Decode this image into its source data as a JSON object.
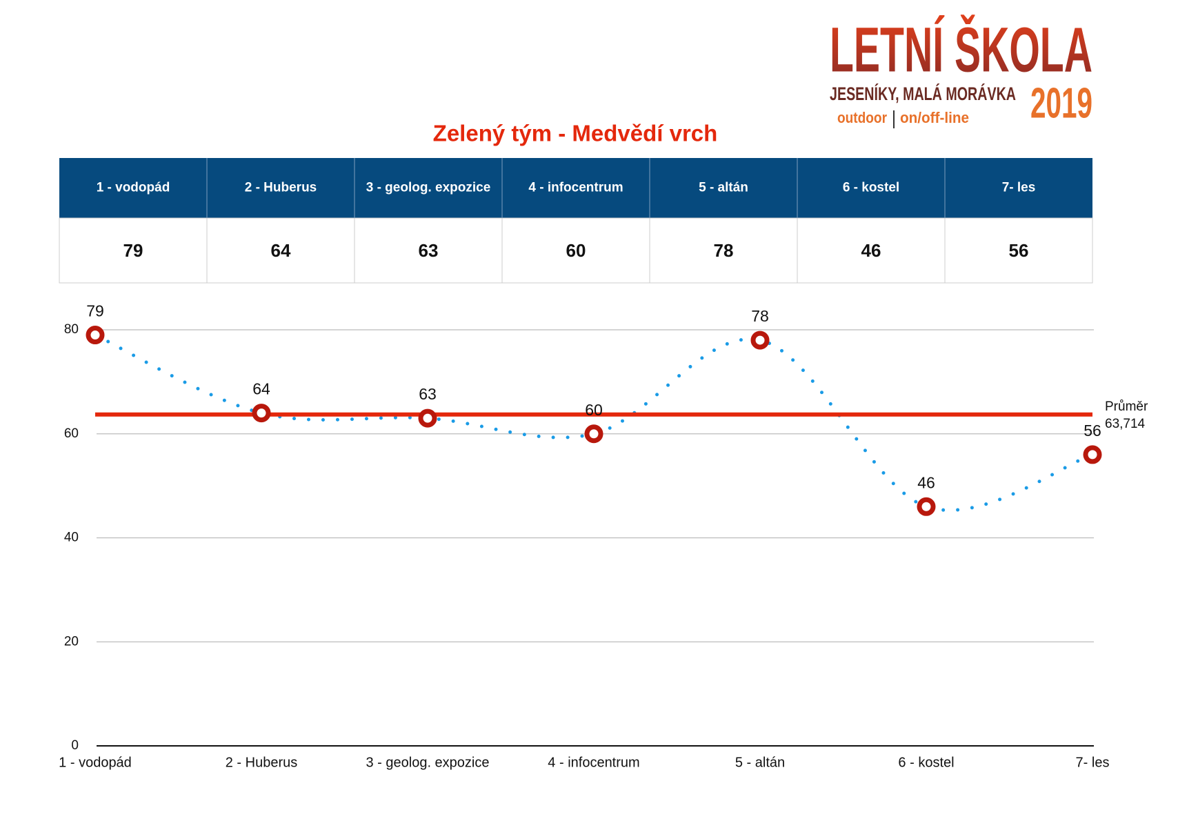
{
  "chart_data": {
    "type": "line",
    "title": "Zelený tým - Medvědí vrch",
    "categories": [
      "1 - vodopád",
      "2 - Huberus",
      "3 - geolog. expozice",
      "4 - infocentrum",
      "5 - altán",
      "6 - kostel",
      "7- les"
    ],
    "values": [
      79,
      64,
      63,
      60,
      78,
      46,
      56
    ],
    "color": "#1a9be6",
    "marker_color": "#b8180c",
    "ylim": [
      0,
      80
    ],
    "yticks": [
      0,
      20,
      40,
      60,
      80
    ],
    "grid": true,
    "average": {
      "name": "Průměr",
      "value": 63.714,
      "label": "63,714",
      "color": "#e4280c"
    },
    "logo": {
      "title": "LETNÍ ŠKOLA",
      "place": "JESENÍKY, MALÁ MORÁVKA",
      "year": "2019",
      "left": "outdoor",
      "right": "on/off-line"
    }
  }
}
